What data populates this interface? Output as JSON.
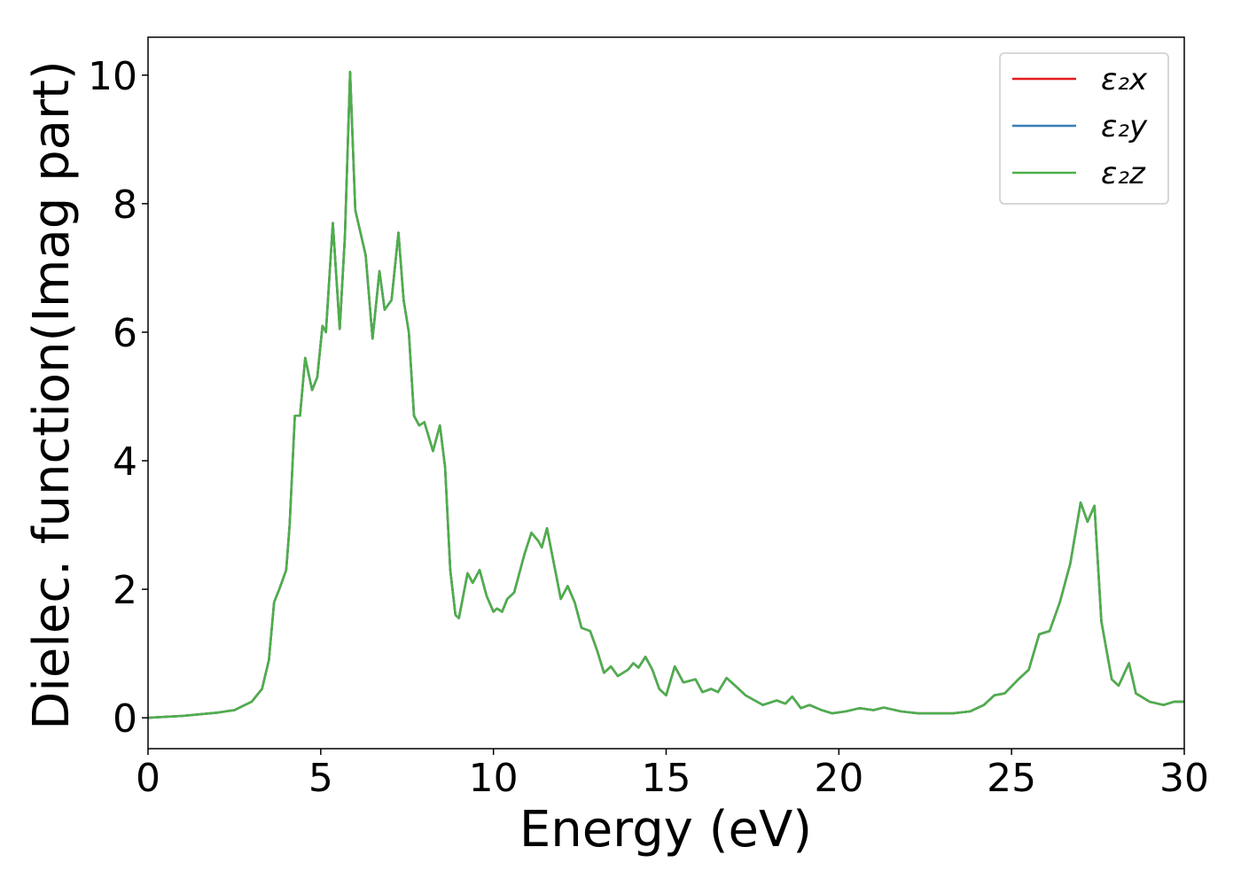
{
  "chart_data": {
    "type": "line",
    "x_label": "Energy (eV)",
    "y_label": "Dielec. function(Imag part)",
    "xlim": [
      0,
      30
    ],
    "ylim": [
      -0.48,
      10.59
    ],
    "xticks": [
      0,
      5,
      10,
      15,
      20,
      25,
      30
    ],
    "yticks": [
      0,
      2,
      4,
      6,
      8,
      10
    ],
    "legend": "upper right",
    "x": [
      0,
      1,
      2,
      2.5,
      3,
      3.3,
      3.5,
      3.65,
      3.8,
      4.0,
      4.1,
      4.25,
      4.4,
      4.55,
      4.75,
      4.9,
      5.05,
      5.15,
      5.35,
      5.55,
      5.7,
      5.85,
      6.0,
      6.15,
      6.3,
      6.5,
      6.7,
      6.85,
      7.05,
      7.25,
      7.4,
      7.55,
      7.7,
      7.85,
      8.0,
      8.25,
      8.45,
      8.6,
      8.75,
      8.9,
      9.0,
      9.25,
      9.4,
      9.6,
      9.8,
      10.0,
      10.1,
      10.25,
      10.4,
      10.6,
      10.9,
      11.1,
      11.3,
      11.4,
      11.55,
      11.75,
      11.95,
      12.15,
      12.35,
      12.55,
      12.8,
      13.0,
      13.2,
      13.4,
      13.6,
      13.9,
      14.05,
      14.2,
      14.4,
      14.6,
      14.8,
      15.0,
      15.25,
      15.5,
      15.85,
      16.05,
      16.3,
      16.5,
      16.75,
      17.0,
      17.3,
      17.8,
      18.2,
      18.45,
      18.65,
      18.9,
      19.15,
      19.5,
      19.8,
      20.2,
      20.6,
      21.0,
      21.3,
      21.8,
      22.3,
      22.8,
      23.3,
      23.8,
      24.2,
      24.5,
      24.8,
      25.2,
      25.5,
      25.8,
      26.1,
      26.4,
      26.7,
      27.0,
      27.2,
      27.4,
      27.6,
      27.9,
      28.1,
      28.4,
      28.6,
      29.0,
      29.4,
      29.7,
      30
    ],
    "series": [
      {
        "name": "ε₂x",
        "color": "#e41a1c",
        "values": [
          0,
          0.03,
          0.08,
          0.12,
          0.25,
          0.45,
          0.9,
          1.8,
          2.0,
          2.3,
          3.0,
          4.7,
          4.7,
          5.6,
          5.1,
          5.3,
          6.1,
          6.0,
          7.7,
          6.05,
          7.5,
          10.05,
          7.9,
          7.55,
          7.2,
          5.9,
          6.95,
          6.35,
          6.5,
          7.55,
          6.5,
          6.0,
          4.7,
          4.55,
          4.6,
          4.15,
          4.55,
          3.9,
          2.3,
          1.6,
          1.55,
          2.25,
          2.1,
          2.3,
          1.9,
          1.65,
          1.7,
          1.65,
          1.85,
          1.95,
          2.55,
          2.88,
          2.75,
          2.65,
          2.95,
          2.4,
          1.85,
          2.05,
          1.8,
          1.4,
          1.35,
          1.05,
          0.7,
          0.8,
          0.65,
          0.75,
          0.85,
          0.78,
          0.95,
          0.75,
          0.45,
          0.35,
          0.8,
          0.55,
          0.6,
          0.4,
          0.45,
          0.4,
          0.62,
          0.5,
          0.35,
          0.2,
          0.27,
          0.22,
          0.33,
          0.15,
          0.2,
          0.12,
          0.07,
          0.1,
          0.15,
          0.12,
          0.16,
          0.1,
          0.07,
          0.07,
          0.07,
          0.1,
          0.2,
          0.35,
          0.38,
          0.6,
          0.75,
          1.3,
          1.35,
          1.8,
          2.4,
          3.35,
          3.05,
          3.3,
          1.5,
          0.6,
          0.5,
          0.85,
          0.38,
          0.25,
          0.2,
          0.25,
          0.25
        ]
      },
      {
        "name": "ε₂y",
        "color": "#377eb8",
        "values": [
          0,
          0.03,
          0.08,
          0.12,
          0.25,
          0.45,
          0.9,
          1.8,
          2.0,
          2.3,
          3.0,
          4.7,
          4.7,
          5.6,
          5.1,
          5.3,
          6.1,
          6.0,
          7.7,
          6.05,
          7.5,
          10.05,
          7.9,
          7.55,
          7.2,
          5.9,
          6.95,
          6.35,
          6.5,
          7.55,
          6.5,
          6.0,
          4.7,
          4.55,
          4.6,
          4.15,
          4.55,
          3.9,
          2.3,
          1.6,
          1.55,
          2.25,
          2.1,
          2.3,
          1.9,
          1.65,
          1.7,
          1.65,
          1.85,
          1.95,
          2.55,
          2.88,
          2.75,
          2.65,
          2.95,
          2.4,
          1.85,
          2.05,
          1.8,
          1.4,
          1.35,
          1.05,
          0.7,
          0.8,
          0.65,
          0.75,
          0.85,
          0.78,
          0.95,
          0.75,
          0.45,
          0.35,
          0.8,
          0.55,
          0.6,
          0.4,
          0.45,
          0.4,
          0.62,
          0.5,
          0.35,
          0.2,
          0.27,
          0.22,
          0.33,
          0.15,
          0.2,
          0.12,
          0.07,
          0.1,
          0.15,
          0.12,
          0.16,
          0.1,
          0.07,
          0.07,
          0.07,
          0.1,
          0.2,
          0.35,
          0.38,
          0.6,
          0.75,
          1.3,
          1.35,
          1.8,
          2.4,
          3.35,
          3.05,
          3.3,
          1.5,
          0.6,
          0.5,
          0.85,
          0.38,
          0.25,
          0.2,
          0.25,
          0.25
        ]
      },
      {
        "name": "ε₂z",
        "color": "#4daf4a",
        "values": [
          0,
          0.03,
          0.08,
          0.12,
          0.25,
          0.45,
          0.9,
          1.8,
          2.0,
          2.3,
          3.0,
          4.7,
          4.7,
          5.6,
          5.1,
          5.3,
          6.1,
          6.0,
          7.7,
          6.05,
          7.5,
          10.05,
          7.9,
          7.55,
          7.2,
          5.9,
          6.95,
          6.35,
          6.5,
          7.55,
          6.5,
          6.0,
          4.7,
          4.55,
          4.6,
          4.15,
          4.55,
          3.9,
          2.3,
          1.6,
          1.55,
          2.25,
          2.1,
          2.3,
          1.9,
          1.65,
          1.7,
          1.65,
          1.85,
          1.95,
          2.55,
          2.88,
          2.75,
          2.65,
          2.95,
          2.4,
          1.85,
          2.05,
          1.8,
          1.4,
          1.35,
          1.05,
          0.7,
          0.8,
          0.65,
          0.75,
          0.85,
          0.78,
          0.95,
          0.75,
          0.45,
          0.35,
          0.8,
          0.55,
          0.6,
          0.4,
          0.45,
          0.4,
          0.62,
          0.5,
          0.35,
          0.2,
          0.27,
          0.22,
          0.33,
          0.15,
          0.2,
          0.12,
          0.07,
          0.1,
          0.15,
          0.12,
          0.16,
          0.1,
          0.07,
          0.07,
          0.07,
          0.1,
          0.2,
          0.35,
          0.38,
          0.6,
          0.75,
          1.3,
          1.35,
          1.8,
          2.4,
          3.35,
          3.05,
          3.3,
          1.5,
          0.6,
          0.5,
          0.85,
          0.38,
          0.25,
          0.2,
          0.25,
          0.25
        ]
      }
    ]
  }
}
